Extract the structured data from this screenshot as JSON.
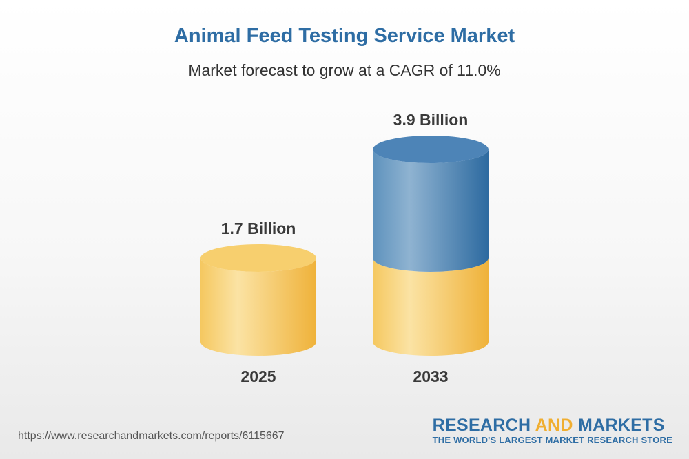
{
  "chart_data": {
    "type": "bar",
    "style": "3d-cylinder",
    "title": "Animal Feed Testing Service Market",
    "subtitle": "Market forecast to grow at a CAGR of 11.0%",
    "unit": "Billion",
    "categories": [
      "2025",
      "2033"
    ],
    "values": [
      1.7,
      3.9
    ],
    "value_labels": [
      "1.7 Billion",
      "3.9 Billion"
    ],
    "cagr": "11.0%"
  },
  "footer": {
    "url": "https://www.researchandmarkets.com/reports/6115667",
    "brand_part1": "RESEARCH ",
    "brand_part2": "AND",
    "brand_part3": " MARKETS",
    "tagline": "THE WORLD'S LARGEST MARKET RESEARCH STORE"
  },
  "colors": {
    "gold_light": "#fbe3a4",
    "gold": "#f5c860",
    "gold_dark": "#efb23a",
    "gold_top": "#f7cf6e",
    "blue_light": "#8fb3d1",
    "blue": "#5e92bd",
    "blue_dark": "#2d6aa0",
    "blue_top": "#4d84b7",
    "label": "#3a3a3a"
  }
}
